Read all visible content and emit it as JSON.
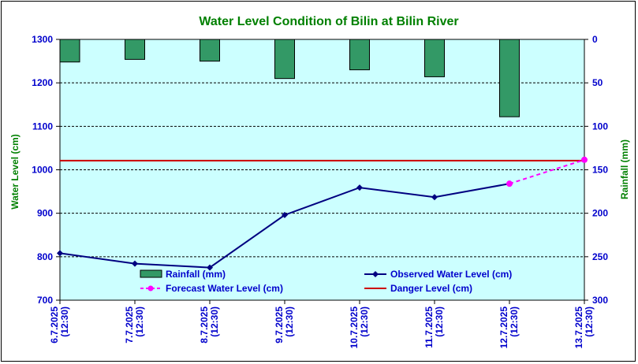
{
  "chart_data": {
    "type": "line",
    "title": "Water Level Condition of Bilin at Bilin River",
    "ylabel_left": "Water Level (cm)",
    "ylabel_right": "Rainfall (mm)",
    "categories": [
      "6.7.2025 (12:30)",
      "7.7.2025 (12:30)",
      "8.7.2025 (12:30)",
      "9.7.2025 (12:30)",
      "10.7.2025 (12:30)",
      "11.7.2025 (12:30)",
      "12.7.2025 (12:30)",
      "13.7.2025 (12:30)"
    ],
    "category_lines": [
      [
        "6.7.2025",
        "(12:30)"
      ],
      [
        "7.7.2025",
        "(12:30)"
      ],
      [
        "8.7.2025",
        "(12:30)"
      ],
      [
        "9.7.2025",
        "(12:30)"
      ],
      [
        "10.7.2025",
        "(12:30)"
      ],
      [
        "11.7.2025",
        "(12:30)"
      ],
      [
        "12.7.2025",
        "(12:30)"
      ],
      [
        "13.7.2025",
        "(12:30)"
      ]
    ],
    "ylim_left": [
      700,
      1300
    ],
    "yticks_left": [
      700,
      800,
      900,
      1000,
      1100,
      1200,
      1300
    ],
    "ylim_right": [
      0,
      300
    ],
    "yticks_right": [
      0,
      50,
      100,
      150,
      200,
      250,
      300
    ],
    "grid": true,
    "series": [
      {
        "name": "Rainfall (mm)",
        "type": "bar",
        "axis": "right",
        "color": "#339966",
        "values": [
          26,
          23,
          25,
          45,
          35,
          43,
          89,
          null
        ]
      },
      {
        "name": "Observed Water Level (cm)",
        "type": "line",
        "axis": "left",
        "color": "#000080",
        "values": [
          808,
          784,
          775,
          896,
          959,
          937,
          968,
          null
        ]
      },
      {
        "name": "Forecast Water Level (cm)",
        "type": "line",
        "style": "dashed",
        "axis": "left",
        "color": "#ff00ff",
        "values": [
          null,
          null,
          null,
          null,
          null,
          null,
          968,
          1023
        ]
      },
      {
        "name": "Danger Level (cm)",
        "type": "line",
        "axis": "left",
        "color": "#cc0000",
        "values": [
          1021,
          1021,
          1021,
          1021,
          1021,
          1021,
          1021,
          1021
        ]
      }
    ],
    "colors": {
      "plot_background": "#ccffff",
      "title": "#008000",
      "left_tick": "#0000cc",
      "right_tick": "#0000cc",
      "axis_label": "#008000"
    },
    "legend_position": "bottom-inside"
  }
}
